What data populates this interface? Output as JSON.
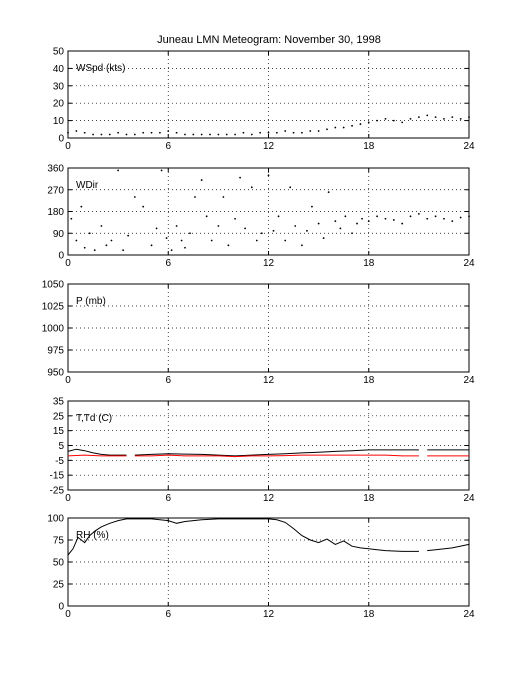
{
  "figure": {
    "title": "Juneau LMN Meteogram:  November 30, 1998"
  },
  "chart_data": [
    {
      "type": "scatter",
      "label": "WSpd (kts)",
      "x_ticks": [
        0,
        6,
        12,
        18,
        24
      ],
      "y_ticks": [
        0,
        10,
        20,
        30,
        40,
        50
      ],
      "xlim": [
        0,
        24
      ],
      "ylim": [
        0,
        50
      ],
      "grid": true,
      "series": [
        {
          "color": "#000000",
          "values": [
            [
              0.0,
              3
            ],
            [
              0.5,
              4
            ],
            [
              1.0,
              3
            ],
            [
              1.5,
              2
            ],
            [
              2.0,
              2
            ],
            [
              2.5,
              2
            ],
            [
              3.0,
              3
            ],
            [
              3.5,
              2
            ],
            [
              4.0,
              2
            ],
            [
              4.5,
              3
            ],
            [
              5.0,
              3
            ],
            [
              5.5,
              3
            ],
            [
              6.0,
              4
            ],
            [
              6.5,
              3
            ],
            [
              7.0,
              2
            ],
            [
              7.5,
              2
            ],
            [
              8.0,
              2
            ],
            [
              8.5,
              2
            ],
            [
              9.0,
              2
            ],
            [
              9.5,
              2
            ],
            [
              10.0,
              2
            ],
            [
              10.5,
              3
            ],
            [
              11.0,
              2
            ],
            [
              11.5,
              3
            ],
            [
              12.0,
              3
            ],
            [
              12.5,
              3
            ],
            [
              13.0,
              4
            ],
            [
              13.5,
              3
            ],
            [
              14.0,
              3
            ],
            [
              14.5,
              4
            ],
            [
              15.0,
              4
            ],
            [
              15.5,
              5
            ],
            [
              16.0,
              6
            ],
            [
              16.5,
              6
            ],
            [
              17.0,
              7
            ],
            [
              17.5,
              8
            ],
            [
              18.0,
              9
            ],
            [
              18.5,
              10
            ],
            [
              19.0,
              11
            ],
            [
              19.5,
              10
            ],
            [
              20.0,
              9
            ],
            [
              20.5,
              11
            ],
            [
              21.0,
              12
            ],
            [
              21.5,
              13
            ],
            [
              22.0,
              12
            ],
            [
              22.5,
              11
            ],
            [
              23.0,
              12
            ],
            [
              23.5,
              11
            ],
            [
              24.0,
              12
            ]
          ]
        }
      ]
    },
    {
      "type": "scatter",
      "label": "WDir",
      "x_ticks": [
        0,
        6,
        12,
        18,
        24
      ],
      "y_ticks": [
        0,
        90,
        180,
        270,
        360
      ],
      "xlim": [
        0,
        24
      ],
      "ylim": [
        0,
        360
      ],
      "grid": true,
      "series": [
        {
          "color": "#000000",
          "values": [
            [
              0.2,
              150
            ],
            [
              0.5,
              60
            ],
            [
              0.8,
              200
            ],
            [
              1.0,
              30
            ],
            [
              1.3,
              90
            ],
            [
              1.6,
              20
            ],
            [
              2.0,
              120
            ],
            [
              2.3,
              40
            ],
            [
              2.6,
              60
            ],
            [
              3.0,
              350
            ],
            [
              3.3,
              20
            ],
            [
              3.6,
              80
            ],
            [
              4.0,
              240
            ],
            [
              4.5,
              200
            ],
            [
              5.0,
              40
            ],
            [
              5.3,
              110
            ],
            [
              5.6,
              350
            ],
            [
              5.9,
              70
            ],
            [
              6.2,
              20
            ],
            [
              6.5,
              120
            ],
            [
              6.8,
              60
            ],
            [
              7.0,
              30
            ],
            [
              7.3,
              90
            ],
            [
              7.6,
              240
            ],
            [
              8.0,
              310
            ],
            [
              8.3,
              160
            ],
            [
              8.6,
              60
            ],
            [
              9.0,
              120
            ],
            [
              9.3,
              240
            ],
            [
              9.6,
              40
            ],
            [
              10.0,
              150
            ],
            [
              10.3,
              320
            ],
            [
              10.6,
              110
            ],
            [
              11.0,
              280
            ],
            [
              11.3,
              60
            ],
            [
              11.6,
              90
            ],
            [
              12.0,
              330
            ],
            [
              12.3,
              100
            ],
            [
              12.6,
              160
            ],
            [
              13.0,
              60
            ],
            [
              13.3,
              280
            ],
            [
              13.6,
              120
            ],
            [
              14.0,
              40
            ],
            [
              14.3,
              100
            ],
            [
              14.6,
              200
            ],
            [
              15.0,
              130
            ],
            [
              15.3,
              70
            ],
            [
              15.6,
              260
            ],
            [
              16.0,
              140
            ],
            [
              16.3,
              110
            ],
            [
              16.6,
              160
            ],
            [
              17.0,
              90
            ],
            [
              17.3,
              130
            ],
            [
              17.6,
              150
            ],
            [
              18.0,
              140
            ],
            [
              18.5,
              160
            ],
            [
              19.0,
              150
            ],
            [
              19.5,
              145
            ],
            [
              20.0,
              130
            ],
            [
              20.5,
              160
            ],
            [
              21.0,
              170
            ],
            [
              21.5,
              150
            ],
            [
              22.0,
              160
            ],
            [
              22.5,
              150
            ],
            [
              23.0,
              140
            ],
            [
              23.5,
              155
            ],
            [
              24.0,
              160
            ]
          ]
        }
      ]
    },
    {
      "type": "line",
      "label": "P (mb)",
      "x_ticks": [
        0,
        6,
        12,
        18,
        24
      ],
      "y_ticks": [
        950,
        975,
        1000,
        1025,
        1050
      ],
      "xlim": [
        0,
        24
      ],
      "ylim": [
        950,
        1050
      ],
      "grid": true,
      "series": []
    },
    {
      "type": "line",
      "label": "T,Td (C)",
      "x_ticks": [
        0,
        6,
        12,
        18,
        24
      ],
      "y_ticks": [
        -25,
        -15,
        -5,
        5,
        15,
        25,
        35
      ],
      "xlim": [
        0,
        24
      ],
      "ylim": [
        -25,
        35
      ],
      "grid": true,
      "series": [
        {
          "color": "#000000",
          "values": [
            [
              0.0,
              1
            ],
            [
              0.5,
              2.5
            ],
            [
              1.0,
              1.5
            ],
            [
              1.5,
              0
            ],
            [
              2.0,
              -1
            ],
            [
              2.5,
              -1.5
            ],
            [
              3.0,
              -1.5
            ],
            [
              3.5,
              -1.5
            ],
            [
              null,
              null
            ],
            [
              4.0,
              -1.5
            ],
            [
              5.0,
              -1
            ],
            [
              6.0,
              -0.5
            ],
            [
              7.0,
              -0.8
            ],
            [
              8.0,
              -1
            ],
            [
              9.0,
              -1.5
            ],
            [
              10.0,
              -2
            ],
            [
              11.0,
              -1.5
            ],
            [
              12.0,
              -1
            ],
            [
              13.0,
              -0.5
            ],
            [
              14.0,
              0
            ],
            [
              15.0,
              0.5
            ],
            [
              16.0,
              1
            ],
            [
              17.0,
              1.5
            ],
            [
              18.0,
              2
            ],
            [
              19.0,
              2
            ],
            [
              20.0,
              2
            ],
            [
              21.0,
              2
            ],
            [
              null,
              null
            ],
            [
              21.5,
              2
            ],
            [
              22.0,
              2
            ],
            [
              23.0,
              2
            ],
            [
              24.0,
              2
            ]
          ]
        },
        {
          "color": "#ff0000",
          "values": [
            [
              0.0,
              -2
            ],
            [
              1.0,
              -1.5
            ],
            [
              2.0,
              -2
            ],
            [
              3.0,
              -2
            ],
            [
              3.5,
              -2
            ],
            [
              null,
              null
            ],
            [
              4.0,
              -2
            ],
            [
              5.0,
              -2
            ],
            [
              6.0,
              -1.5
            ],
            [
              7.0,
              -2
            ],
            [
              8.0,
              -2
            ],
            [
              9.0,
              -2
            ],
            [
              10.0,
              -2.5
            ],
            [
              11.0,
              -2
            ],
            [
              12.0,
              -2
            ],
            [
              13.0,
              -1.8
            ],
            [
              14.0,
              -1.5
            ],
            [
              15.0,
              -1.5
            ],
            [
              16.0,
              -1.5
            ],
            [
              17.0,
              -1.5
            ],
            [
              18.0,
              -1.5
            ],
            [
              19.0,
              -1.5
            ],
            [
              20.0,
              -2
            ],
            [
              21.0,
              -2
            ],
            [
              null,
              null
            ],
            [
              21.5,
              -2
            ],
            [
              22.0,
              -2
            ],
            [
              23.0,
              -2
            ],
            [
              24.0,
              -2
            ]
          ]
        }
      ]
    },
    {
      "type": "line",
      "label": "RH (%)",
      "x_ticks": [
        0,
        6,
        12,
        18,
        24
      ],
      "y_ticks": [
        0,
        25,
        50,
        75,
        100
      ],
      "xlim": [
        0,
        24
      ],
      "ylim": [
        0,
        100
      ],
      "grid": true,
      "series": [
        {
          "color": "#000000",
          "values": [
            [
              0.0,
              58
            ],
            [
              0.3,
              65
            ],
            [
              0.6,
              78
            ],
            [
              1.0,
              72
            ],
            [
              1.3,
              80
            ],
            [
              1.6,
              85
            ],
            [
              2.0,
              90
            ],
            [
              2.5,
              94
            ],
            [
              3.0,
              97
            ],
            [
              3.5,
              99
            ],
            [
              4.0,
              99
            ],
            [
              5.0,
              99
            ],
            [
              6.0,
              97
            ],
            [
              6.5,
              94
            ],
            [
              7.0,
              96
            ],
            [
              8.0,
              98
            ],
            [
              9.0,
              99
            ],
            [
              10.0,
              99
            ],
            [
              11.0,
              99
            ],
            [
              12.0,
              99
            ],
            [
              12.5,
              98
            ],
            [
              13.0,
              95
            ],
            [
              13.5,
              88
            ],
            [
              14.0,
              80
            ],
            [
              14.5,
              75
            ],
            [
              15.0,
              72
            ],
            [
              15.5,
              76
            ],
            [
              16.0,
              70
            ],
            [
              16.5,
              74
            ],
            [
              17.0,
              68
            ],
            [
              17.5,
              66
            ],
            [
              18.0,
              65
            ],
            [
              18.5,
              64
            ],
            [
              19.0,
              63
            ],
            [
              20.0,
              62
            ],
            [
              21.0,
              62
            ],
            [
              null,
              null
            ],
            [
              21.5,
              63
            ],
            [
              22.0,
              64
            ],
            [
              23.0,
              66
            ],
            [
              24.0,
              70
            ]
          ]
        }
      ]
    }
  ]
}
